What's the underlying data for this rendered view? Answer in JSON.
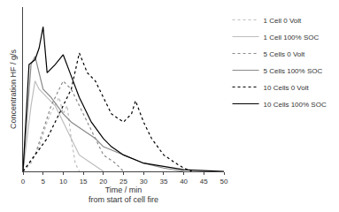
{
  "chart_data": {
    "type": "line",
    "xlabel": "Time / min\nfrom start of cell fire",
    "ylabel": "Concentration HF / g/s",
    "xlim": [
      0,
      50
    ],
    "xticks": [
      0,
      5,
      10,
      15,
      20,
      25,
      30,
      35,
      40,
      45,
      50
    ],
    "ylim": [
      0,
      100
    ],
    "tick_labels": "x",
    "grid": false,
    "legend": "top right",
    "series": [
      {
        "name": "1 Cell 0 Volt",
        "color": "#bdbdbd",
        "line_style": "dot",
        "x": [
          0,
          2,
          4,
          6,
          7,
          8,
          9,
          10,
          11,
          12,
          13,
          14
        ],
        "values": [
          0,
          5,
          15,
          30,
          36,
          40,
          45,
          35,
          40,
          20,
          5,
          0
        ]
      },
      {
        "name": "1 Cell 100% SOC",
        "color": "#bdbdbd",
        "line_style": "solid",
        "x": [
          0,
          1,
          2,
          3,
          4,
          6,
          8,
          10,
          12,
          14,
          17,
          20
        ],
        "values": [
          0,
          20,
          40,
          55,
          50,
          45,
          40,
          30,
          20,
          10,
          5,
          0
        ]
      },
      {
        "name": "5 Cells 0 Volt",
        "color": "#8a8a8a",
        "line_style": "dot",
        "x": [
          0,
          3,
          5,
          7,
          9,
          10,
          12,
          14,
          16,
          18,
          20,
          23,
          25
        ],
        "values": [
          0,
          10,
          25,
          40,
          50,
          55,
          50,
          40,
          30,
          20,
          10,
          5,
          0
        ]
      },
      {
        "name": "5 Cells 100% SOC",
        "color": "#8a8a8a",
        "line_style": "solid",
        "x": [
          0,
          1,
          2,
          3,
          5,
          7,
          10,
          12,
          15,
          18,
          20,
          25,
          30,
          35,
          40
        ],
        "values": [
          0,
          35,
          65,
          70,
          50,
          45,
          35,
          30,
          25,
          20,
          15,
          10,
          5,
          2,
          0
        ]
      },
      {
        "name": "10 Cells 0 Volt",
        "color": "#000000",
        "line_style": "dot",
        "x": [
          0,
          3,
          6,
          8,
          10,
          11,
          12,
          14,
          16,
          18,
          20,
          22,
          25,
          27,
          28,
          30,
          32,
          35,
          38,
          40,
          42
        ],
        "values": [
          0,
          10,
          20,
          30,
          40,
          45,
          50,
          72,
          60,
          55,
          45,
          35,
          30,
          35,
          43,
          30,
          20,
          10,
          5,
          2,
          0
        ]
      },
      {
        "name": "10 Cells 100% SOC",
        "color": "#000000",
        "line_style": "solid",
        "x": [
          0,
          1,
          1.5,
          3,
          4,
          5,
          6,
          8,
          10,
          12,
          14,
          15,
          17,
          20,
          22,
          25,
          30,
          35,
          40,
          45,
          50
        ],
        "values": [
          0,
          45,
          65,
          68,
          75,
          88,
          60,
          65,
          71,
          58,
          45,
          40,
          30,
          20,
          15,
          10,
          5,
          3,
          1,
          0.5,
          0
        ]
      }
    ]
  }
}
